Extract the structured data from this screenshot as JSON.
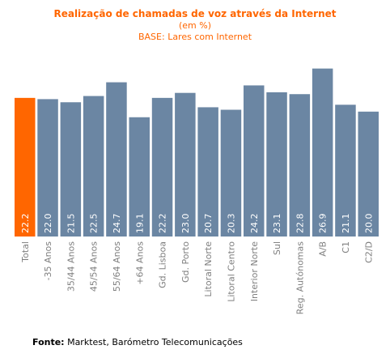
{
  "header": {
    "title": "Realização de chamadas de voz através da Internet",
    "subtitle": "(em %)",
    "base": "BASE: Lares com Internet"
  },
  "footer": {
    "source_label": "Fonte:",
    "source_text": " Marktest, Barómetro Telecomunicações"
  },
  "colors": {
    "highlight": "#ff6600",
    "bar": "#6b86a3",
    "label": "#7f7f7f",
    "title": "#ff6600"
  },
  "chart_data": {
    "type": "bar",
    "title": "Realização de chamadas de voz através da Internet",
    "subtitle": "(em %)",
    "note": "BASE: Lares com Internet",
    "categories": [
      "Total",
      "-35 Anos",
      "35/44 Anos",
      "45/54 Anos",
      "55/64 Anos",
      "+64 Anos",
      "Gd. Lisboa",
      "Gd. Porto",
      "Litoral Norte",
      "Litoral Centro",
      "Interior Norte",
      "Sul",
      "Reg. Autónomas",
      "A/B",
      "C1",
      "C2/D"
    ],
    "values": [
      22.2,
      22.0,
      21.5,
      22.5,
      24.7,
      19.1,
      22.2,
      23.0,
      20.7,
      20.3,
      24.2,
      23.1,
      22.8,
      26.9,
      21.1,
      20.0
    ],
    "value_labels": [
      "22.2",
      "22.0",
      "21.5",
      "22.5",
      "24.7",
      "19.1",
      "22.2",
      "23.0",
      "20.7",
      "20.3",
      "24.2",
      "23.1",
      "22.8",
      "26.9",
      "21.1",
      "20.0"
    ],
    "highlight_index": 0,
    "xlabel": "",
    "ylabel": "",
    "ylim": [
      0,
      27.5
    ],
    "grid": false,
    "legend": "none"
  }
}
